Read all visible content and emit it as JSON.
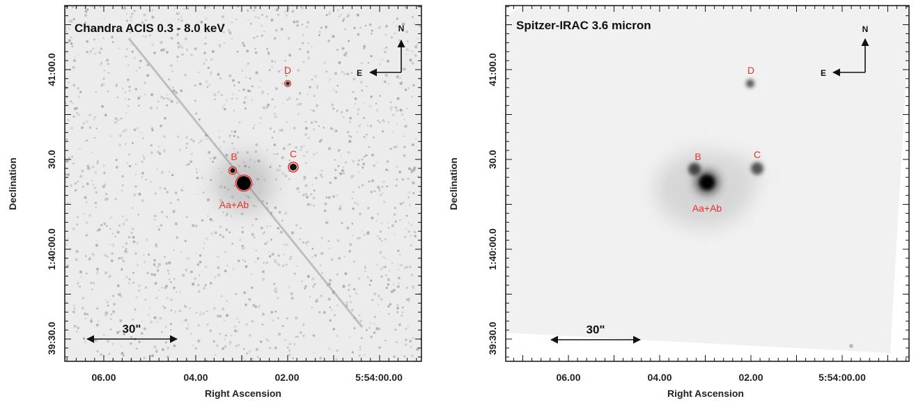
{
  "colors": {
    "source_marker": "#e8302a",
    "chandra_background": "#ececec",
    "spitzer_background": "#f1f1f1",
    "frame": "#111111"
  },
  "panels": [
    {
      "id": "chandra",
      "title": "Chandra ACIS 0.3 - 8.0 keV",
      "xlabel": "Right Ascension",
      "ylabel": "Declination",
      "xticks": [
        "06.00",
        "04.00",
        "02.00",
        "5:54:00.00"
      ],
      "yticks": [
        "41:00.0",
        "30.0",
        "1:40:00.0",
        "39:30.0"
      ],
      "compass": {
        "north": "N",
        "east": "E"
      },
      "scale_bar": "30\"",
      "sources": [
        {
          "label": "D",
          "circled": true
        },
        {
          "label": "B",
          "circled": true
        },
        {
          "label": "C",
          "circled": true
        },
        {
          "label": "Aa+Ab",
          "circled": true
        }
      ]
    },
    {
      "id": "spitzer",
      "title": "Spitzer-IRAC 3.6 micron",
      "xlabel": "Right Ascension",
      "ylabel": "Declination",
      "xticks": [
        "06.00",
        "04.00",
        "02.00",
        "5:54:00.00"
      ],
      "yticks": [
        "41:00.0",
        "30.0",
        "1:40:00.0",
        "39:30.0"
      ],
      "compass": {
        "north": "N",
        "east": "E"
      },
      "scale_bar": "30\"",
      "sources": [
        {
          "label": "D",
          "circled": false
        },
        {
          "label": "B",
          "circled": false
        },
        {
          "label": "C",
          "circled": false
        },
        {
          "label": "Aa+Ab",
          "circled": false
        }
      ]
    }
  ]
}
